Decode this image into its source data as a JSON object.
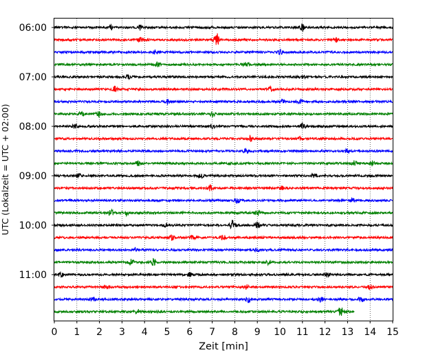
{
  "chart_data": {
    "type": "line",
    "title": "",
    "xlabel": "Zeit  [min]",
    "ylabel": "UTC (Lokalzeit = UTC + 02:00)",
    "xlim": [
      0,
      15
    ],
    "x_ticks": [
      "0",
      "1",
      "2",
      "3",
      "4",
      "5",
      "6",
      "7",
      "8",
      "9",
      "10",
      "11",
      "12",
      "13",
      "14",
      "15"
    ],
    "y_ticks": [
      "06:00",
      "07:00",
      "08:00",
      "09:00",
      "10:00",
      "11:00"
    ],
    "grid": "vertical dotted",
    "trace_interval_min": 15,
    "first_trace": "06:00",
    "colors": [
      "#000000",
      "#ff0000",
      "#0000ff",
      "#008000"
    ],
    "traces": [
      {
        "start": "06:00",
        "events": [
          [
            2.5,
            1.2
          ],
          [
            3.8,
            1.4
          ],
          [
            11.0,
            2.6
          ]
        ]
      },
      {
        "start": "06:15",
        "events": [
          [
            3.8,
            1.2
          ],
          [
            7.2,
            4.2
          ],
          [
            12.5,
            1.3
          ]
        ]
      },
      {
        "start": "06:30",
        "events": [
          [
            4.5,
            1.2
          ],
          [
            10.0,
            1.3
          ]
        ]
      },
      {
        "start": "06:45",
        "events": [
          [
            4.6,
            1.3
          ],
          [
            8.5,
            1.2
          ]
        ]
      },
      {
        "start": "07:00",
        "events": [
          [
            3.3,
            1.2
          ],
          [
            11.0,
            1.2
          ]
        ]
      },
      {
        "start": "07:15",
        "events": [
          [
            2.7,
            1.8
          ],
          [
            9.6,
            1.4
          ]
        ]
      },
      {
        "start": "07:30",
        "events": [
          [
            5.0,
            1.3
          ],
          [
            10.1,
            2.0
          ],
          [
            10.9,
            1.3
          ]
        ]
      },
      {
        "start": "07:45",
        "events": [
          [
            1.2,
            1.3
          ],
          [
            2.0,
            2.0
          ],
          [
            7.0,
            1.3
          ]
        ]
      },
      {
        "start": "08:00",
        "events": [
          [
            0.9,
            1.3
          ],
          [
            7.0,
            1.3
          ],
          [
            11.0,
            2.2
          ]
        ]
      },
      {
        "start": "08:15",
        "events": [
          [
            8.7,
            1.6
          ],
          [
            10.9,
            1.3
          ]
        ]
      },
      {
        "start": "08:30",
        "events": [
          [
            8.5,
            1.5
          ],
          [
            13.0,
            1.3
          ]
        ]
      },
      {
        "start": "08:45",
        "events": [
          [
            3.7,
            1.3
          ],
          [
            13.3,
            1.6
          ],
          [
            14.1,
            1.5
          ]
        ]
      },
      {
        "start": "09:00",
        "events": [
          [
            1.1,
            1.3
          ],
          [
            6.5,
            1.3
          ],
          [
            11.5,
            1.2
          ]
        ]
      },
      {
        "start": "09:15",
        "events": [
          [
            6.9,
            1.7
          ],
          [
            10.1,
            1.3
          ]
        ]
      },
      {
        "start": "09:30",
        "events": [
          [
            8.1,
            1.6
          ],
          [
            13.2,
            1.4
          ]
        ]
      },
      {
        "start": "09:45",
        "events": [
          [
            2.5,
            2.0
          ],
          [
            3.2,
            1.5
          ],
          [
            9.0,
            1.6
          ]
        ]
      },
      {
        "start": "10:00",
        "events": [
          [
            4.9,
            1.6
          ],
          [
            7.9,
            3.2
          ],
          [
            9.0,
            2.3
          ]
        ]
      },
      {
        "start": "10:15",
        "events": [
          [
            5.2,
            1.8
          ],
          [
            6.1,
            1.3
          ],
          [
            7.5,
            1.3
          ]
        ]
      },
      {
        "start": "10:30",
        "events": [
          [
            3.6,
            1.2
          ],
          [
            9.0,
            1.2
          ]
        ]
      },
      {
        "start": "10:45",
        "events": [
          [
            3.4,
            2.0
          ],
          [
            4.4,
            2.2
          ],
          [
            9.5,
            1.3
          ]
        ]
      },
      {
        "start": "11:00",
        "events": [
          [
            0.3,
            1.4
          ],
          [
            6.0,
            1.3
          ],
          [
            12.1,
            1.3
          ]
        ]
      },
      {
        "start": "11:15",
        "events": [
          [
            2.3,
            1.3
          ],
          [
            8.5,
            1.4
          ],
          [
            14.0,
            1.3
          ]
        ]
      },
      {
        "start": "11:30",
        "events": [
          [
            1.7,
            1.5
          ],
          [
            8.6,
            1.8
          ],
          [
            11.8,
            1.4
          ],
          [
            13.6,
            1.6
          ]
        ]
      },
      {
        "start": "11:45",
        "events": [
          [
            3.7,
            1.2
          ],
          [
            4.7,
            1.3
          ],
          [
            12.7,
            3.2
          ]
        ],
        "end": 13.3
      }
    ]
  }
}
